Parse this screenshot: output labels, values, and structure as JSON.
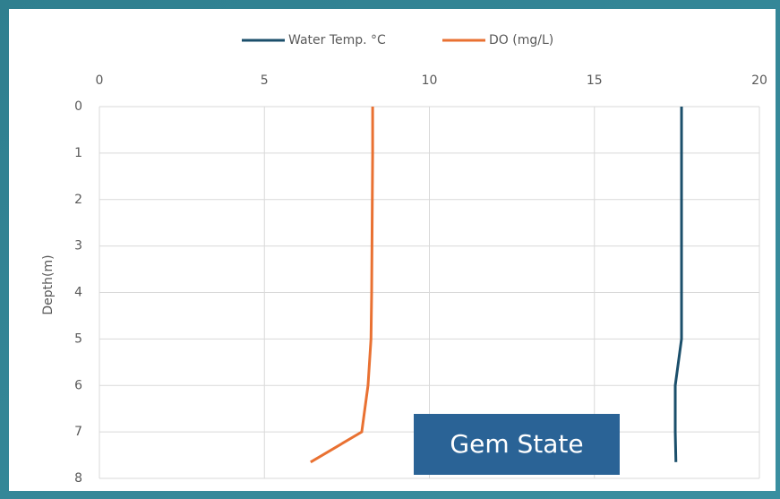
{
  "chart_data": {
    "type": "line",
    "y_label": "Depth(m)",
    "y": [
      0,
      1,
      2,
      3,
      4,
      5,
      6,
      7,
      7.65
    ],
    "series": [
      {
        "name": "Water Temp. °C",
        "color": "#1b4f6b",
        "values": [
          17.64,
          17.64,
          17.64,
          17.64,
          17.64,
          17.64,
          17.45,
          17.45,
          17.47
        ]
      },
      {
        "name": "DO (mg/L)",
        "color": "#e97132",
        "values": [
          8.28,
          8.28,
          8.27,
          8.26,
          8.25,
          8.23,
          8.14,
          7.95,
          6.4
        ]
      }
    ],
    "xlim": [
      0,
      20
    ],
    "xticks": [
      0,
      5,
      10,
      15,
      20
    ],
    "ylim": [
      0,
      8
    ],
    "yticks": [
      0,
      1,
      2,
      3,
      4,
      5,
      6,
      7,
      8
    ],
    "y_inverted": true,
    "grid": true,
    "annotation": "Gem State"
  }
}
